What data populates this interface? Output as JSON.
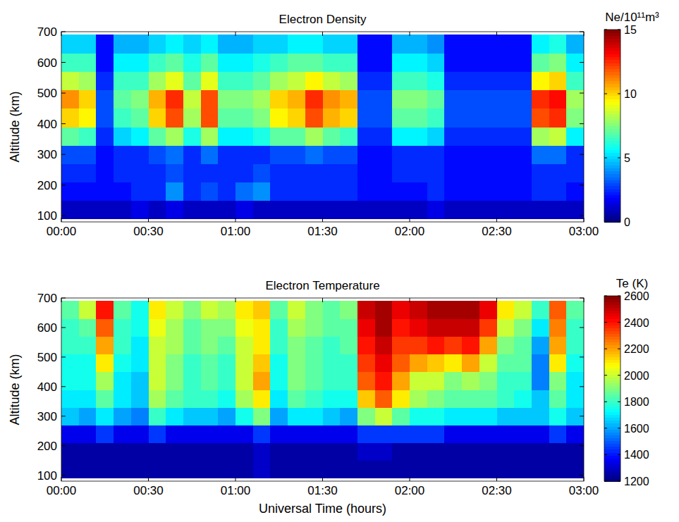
{
  "chart_data": [
    {
      "type": "heatmap",
      "title": "Electron Density",
      "y_label": "Altitude (km)",
      "x": [
        0.05,
        0.15,
        0.25,
        0.35,
        0.45,
        0.55,
        0.65,
        0.75,
        0.85,
        0.95,
        1.05,
        1.15,
        1.25,
        1.35,
        1.45,
        1.55,
        1.65,
        1.75,
        1.85,
        1.95,
        2.05,
        2.15,
        2.25,
        2.35,
        2.45,
        2.55,
        2.65,
        2.75,
        2.85,
        2.95
      ],
      "y": [
        120,
        180,
        240,
        300,
        360,
        420,
        480,
        540,
        600,
        660
      ],
      "cells": [
        [
          1,
          1,
          1,
          1,
          1.5,
          1,
          1.5,
          1,
          1,
          1,
          1.5,
          1,
          1,
          1,
          1,
          1,
          1,
          1,
          1,
          1,
          1,
          1.5,
          1,
          1,
          1,
          1,
          1,
          1,
          1,
          1
        ],
        [
          2,
          2,
          2,
          2,
          2.5,
          2.5,
          4,
          2.5,
          3,
          2.5,
          3.5,
          4,
          2.5,
          2.5,
          2.5,
          2.5,
          2.5,
          2,
          2,
          2,
          2,
          2.5,
          2,
          2,
          2,
          2,
          2,
          2.5,
          2.5,
          2
        ],
        [
          2.5,
          2.5,
          2,
          2.5,
          2.5,
          2.5,
          3,
          2.5,
          2.5,
          2.5,
          2.5,
          3,
          2.5,
          2.5,
          2.5,
          2.5,
          2.5,
          2,
          2,
          2.5,
          2.5,
          2.5,
          2,
          2,
          2,
          2,
          2,
          2.5,
          2.5,
          2.5
        ],
        [
          3,
          3,
          2,
          2.5,
          2.5,
          3,
          3.5,
          2.5,
          3.5,
          2.5,
          2.5,
          2.5,
          3,
          3,
          3.5,
          3,
          3,
          2,
          2,
          2.5,
          2.5,
          2.5,
          2,
          2,
          2,
          2,
          2,
          3.5,
          3.5,
          2.5
        ],
        [
          7,
          6.5,
          2.5,
          5,
          5.5,
          7,
          8,
          6,
          8,
          5.5,
          5.5,
          6,
          7,
          7,
          8,
          7,
          6.5,
          2.5,
          2.5,
          5.5,
          5.5,
          5,
          2.5,
          2.5,
          2.5,
          2.5,
          2.5,
          8,
          8.5,
          5.5
        ],
        [
          10,
          9.5,
          3,
          6.5,
          7,
          10,
          12,
          8,
          12,
          7,
          7,
          7.5,
          9.5,
          10,
          12,
          10.5,
          10,
          3,
          3,
          7,
          7,
          6.5,
          3,
          3,
          3,
          3,
          3,
          12,
          12.5,
          7.5
        ],
        [
          11,
          10,
          3,
          7,
          7.5,
          10.5,
          12.5,
          8.5,
          12,
          7.5,
          7.5,
          8,
          10,
          10.5,
          12.5,
          11,
          10.5,
          3,
          3,
          7.5,
          7.5,
          7,
          3,
          3,
          3,
          3,
          3,
          12.5,
          13,
          8
        ],
        [
          8.5,
          8,
          2.5,
          6.5,
          6.5,
          8,
          9,
          7,
          9,
          6.5,
          6.5,
          7,
          8,
          8.5,
          9.5,
          8.5,
          8,
          2.5,
          2.5,
          6.5,
          6.5,
          6,
          2.5,
          2.5,
          2.5,
          2.5,
          2.5,
          9.5,
          10,
          6.5
        ],
        [
          6.5,
          6.5,
          2,
          5.5,
          5.5,
          6.5,
          7,
          6,
          7,
          5.5,
          5.5,
          6,
          6.5,
          7,
          7,
          6.5,
          6.5,
          2,
          2,
          5.5,
          5.5,
          5,
          2,
          2,
          2,
          2,
          2,
          7,
          7.5,
          5.5
        ],
        [
          5,
          5,
          2,
          4.5,
          4.5,
          5,
          5.5,
          5,
          5.5,
          4.5,
          4.5,
          5,
          5,
          5.5,
          5.5,
          5,
          5,
          2,
          2,
          4.5,
          4.5,
          4,
          2,
          2,
          2,
          2,
          2,
          5.5,
          6,
          4.5
        ]
      ],
      "xlim": [
        0,
        3
      ],
      "ylim": [
        80,
        700
      ],
      "xticks": [
        {
          "value": 0,
          "label": "00:00"
        },
        {
          "value": 0.5,
          "label": "00:30"
        },
        {
          "value": 1,
          "label": "01:00"
        },
        {
          "value": 1.5,
          "label": "01:30"
        },
        {
          "value": 2,
          "label": "02:00"
        },
        {
          "value": 2.5,
          "label": "02:30"
        },
        {
          "value": 3,
          "label": "03:00"
        }
      ],
      "yticks": [
        100,
        200,
        300,
        400,
        500,
        600,
        700
      ],
      "colorbar": {
        "label": "Ne/10¹¹m³",
        "range": [
          0,
          15
        ],
        "ticks": [
          0,
          5,
          10,
          15
        ]
      }
    },
    {
      "type": "heatmap",
      "title": "Electron Temperature",
      "y_label": "Altitude (km)",
      "x_label": "Universal Time (hours)",
      "x": [
        0.05,
        0.15,
        0.25,
        0.35,
        0.45,
        0.55,
        0.65,
        0.75,
        0.85,
        0.95,
        1.05,
        1.15,
        1.25,
        1.35,
        1.45,
        1.55,
        1.65,
        1.75,
        1.85,
        1.95,
        2.05,
        2.15,
        2.25,
        2.35,
        2.45,
        2.55,
        2.65,
        2.75,
        2.85,
        2.95
      ],
      "y": [
        120,
        180,
        240,
        300,
        360,
        420,
        480,
        540,
        600,
        660
      ],
      "cells": [
        [
          1250,
          1250,
          1250,
          1250,
          1250,
          1250,
          1250,
          1250,
          1250,
          1250,
          1250,
          1300,
          1250,
          1250,
          1250,
          1250,
          1250,
          1250,
          1250,
          1250,
          1250,
          1250,
          1250,
          1250,
          1250,
          1250,
          1250,
          1250,
          1250,
          1250
        ],
        [
          1250,
          1250,
          1250,
          1250,
          1250,
          1250,
          1250,
          1250,
          1250,
          1250,
          1250,
          1300,
          1250,
          1250,
          1250,
          1250,
          1250,
          1300,
          1300,
          1250,
          1250,
          1250,
          1250,
          1250,
          1250,
          1250,
          1250,
          1250,
          1250,
          1250
        ],
        [
          1350,
          1350,
          1450,
          1350,
          1350,
          1450,
          1350,
          1350,
          1350,
          1350,
          1350,
          1450,
          1350,
          1350,
          1350,
          1350,
          1350,
          1450,
          1450,
          1450,
          1450,
          1450,
          1350,
          1350,
          1350,
          1350,
          1350,
          1350,
          1450,
          1350
        ],
        [
          1650,
          1600,
          1700,
          1600,
          1550,
          1800,
          1700,
          1650,
          1650,
          1600,
          1750,
          1900,
          1600,
          1700,
          1700,
          1650,
          1600,
          1900,
          2000,
          1850,
          1750,
          1750,
          1700,
          1700,
          1700,
          1650,
          1650,
          1650,
          1750,
          1650
        ],
        [
          1700,
          1700,
          1850,
          1700,
          1650,
          1950,
          1850,
          1800,
          1800,
          1750,
          1950,
          2100,
          1700,
          1850,
          1800,
          1750,
          1750,
          2150,
          2300,
          2100,
          1950,
          1900,
          1850,
          1850,
          1850,
          1800,
          1750,
          1650,
          1850,
          1700
        ],
        [
          1750,
          1750,
          1950,
          1700,
          1650,
          2000,
          1900,
          1800,
          1850,
          1800,
          2000,
          2200,
          1750,
          1900,
          1850,
          1800,
          1800,
          2300,
          2400,
          2200,
          2000,
          2000,
          1900,
          1950,
          1900,
          1800,
          1800,
          1550,
          1900,
          1700
        ],
        [
          1750,
          1750,
          2100,
          1750,
          1700,
          2000,
          1900,
          1800,
          1850,
          1800,
          2000,
          2150,
          1750,
          1900,
          1850,
          1800,
          1800,
          2350,
          2450,
          2300,
          2200,
          2150,
          2100,
          2200,
          2000,
          1850,
          1850,
          1550,
          2100,
          1750
        ],
        [
          1800,
          1800,
          2200,
          1800,
          1700,
          2000,
          1950,
          1850,
          1900,
          1850,
          2000,
          2100,
          1800,
          1900,
          1850,
          1800,
          1850,
          2400,
          2500,
          2350,
          2350,
          2400,
          2350,
          2400,
          2200,
          1900,
          1850,
          1600,
          2200,
          1800
        ],
        [
          1800,
          1850,
          2300,
          1800,
          1750,
          2050,
          1950,
          1850,
          1900,
          1900,
          2050,
          2100,
          1800,
          1950,
          1900,
          1850,
          1850,
          2450,
          2550,
          2400,
          2450,
          2500,
          2500,
          2500,
          2350,
          2000,
          1900,
          1700,
          2250,
          1800
        ],
        [
          1850,
          2000,
          2400,
          1850,
          1750,
          2100,
          2000,
          1900,
          2000,
          1950,
          2100,
          2150,
          1850,
          2000,
          1900,
          1850,
          1900,
          2500,
          2550,
          2450,
          2500,
          2550,
          2550,
          2550,
          2450,
          2100,
          2000,
          1800,
          2300,
          1850
        ]
      ],
      "xlim": [
        0,
        3
      ],
      "ylim": [
        80,
        700
      ],
      "xticks": [
        {
          "value": 0,
          "label": "00:00"
        },
        {
          "value": 0.5,
          "label": "00:30"
        },
        {
          "value": 1,
          "label": "01:00"
        },
        {
          "value": 1.5,
          "label": "01:30"
        },
        {
          "value": 2,
          "label": "02:00"
        },
        {
          "value": 2.5,
          "label": "02:30"
        },
        {
          "value": 3,
          "label": "03:00"
        }
      ],
      "yticks": [
        100,
        200,
        300,
        400,
        500,
        600,
        700
      ],
      "colorbar": {
        "label": "Te (K)",
        "range": [
          1200,
          2600
        ],
        "ticks": [
          1200,
          1400,
          1600,
          1800,
          2000,
          2200,
          2400,
          2600
        ]
      }
    }
  ]
}
